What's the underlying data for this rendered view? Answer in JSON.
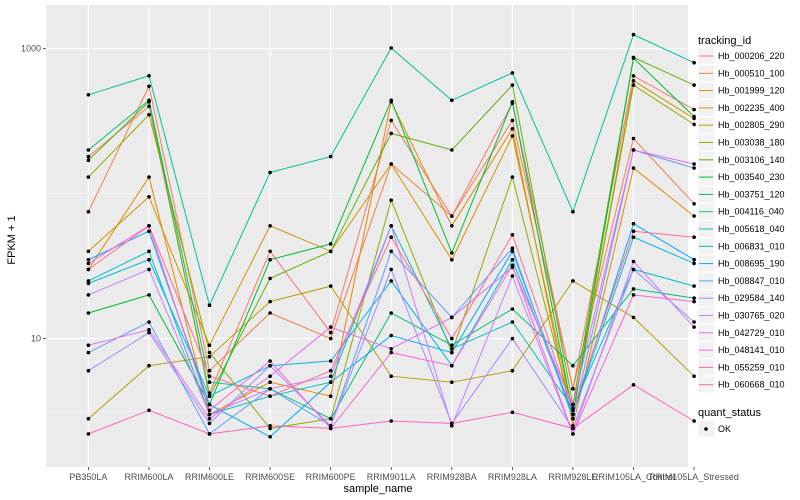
{
  "chart_data": {
    "type": "line",
    "xlabel": "sample_name",
    "ylabel": "FPKM + 1",
    "y_scale": "log10",
    "ylim": [
      1.3,
      2000
    ],
    "y_ticks": [
      {
        "value": 10,
        "label": "10"
      },
      {
        "value": 1000,
        "label": "1000"
      }
    ],
    "grid": true,
    "panel_color": "#ebebeb",
    "categories": [
      "PB350LA",
      "RRIM600LA",
      "RRIM600LE",
      "RRIM600SE",
      "RRIM600PE",
      "RRIM901LA",
      "RRIM928BA",
      "RRIM928LA",
      "RRIM928LE",
      "RRIM105LA_Control",
      "RRIM105LA_Stressed"
    ],
    "legend": {
      "title": "tracking_id",
      "position": "right"
    },
    "legend2": {
      "title": "quant_status",
      "entries": [
        "OK"
      ]
    },
    "series": [
      {
        "name": "Hb_000206_220",
        "color": "#F8766D",
        "values": [
          180,
          400,
          4.2,
          40,
          11,
          320,
          70,
          420,
          4.5,
          650,
          380
        ]
      },
      {
        "name": "Hb_000510_100",
        "color": "#F07E4E",
        "values": [
          75,
          550,
          6,
          15,
          10,
          160,
          70,
          320,
          4.5,
          240,
          85
        ]
      },
      {
        "name": "Hb_001999_120",
        "color": "#E58700",
        "values": [
          30,
          130,
          3,
          5,
          4,
          430,
          60,
          280,
          2.5,
          150,
          70
        ]
      },
      {
        "name": "Hb_002235_400",
        "color": "#D39200",
        "values": [
          40,
          95,
          9,
          60,
          40,
          160,
          35,
          250,
          3,
          600,
          330
        ]
      },
      {
        "name": "Hb_002805_290",
        "color": "#B79F00",
        "values": [
          2.8,
          6.5,
          7.5,
          18,
          23,
          5.5,
          5,
          6,
          25,
          14,
          5.5
        ]
      },
      {
        "name": "Hb_003038_180",
        "color": "#93AA00",
        "values": [
          130,
          350,
          8,
          2.4,
          2.8,
          90,
          8,
          130,
          3,
          560,
          300
        ]
      },
      {
        "name": "Hb_003106_140",
        "color": "#5EB300",
        "values": [
          170,
          430,
          4,
          26,
          40,
          260,
          200,
          560,
          3.5,
          870,
          560
        ]
      },
      {
        "name": "Hb_003540_230",
        "color": "#00BA38",
        "values": [
          15,
          20,
          3.5,
          35,
          45,
          440,
          39,
          430,
          3,
          860,
          340
        ]
      },
      {
        "name": "Hb_003751_120",
        "color": "#00BF74",
        "values": [
          200,
          440,
          5,
          4.5,
          2.8,
          15,
          9,
          16,
          6.5,
          22,
          19
        ]
      },
      {
        "name": "Hb_004116_040",
        "color": "#00C19F",
        "values": [
          480,
          650,
          17,
          140,
          180,
          1010,
          440,
          680,
          75,
          1250,
          800
        ]
      },
      {
        "name": "Hb_005618_040",
        "color": "#00BFC4",
        "values": [
          25,
          40,
          3,
          4,
          5,
          60,
          8.5,
          13,
          3.3,
          30,
          23
        ]
      },
      {
        "name": "Hb_006831_010",
        "color": "#00B8E7",
        "values": [
          24,
          35,
          4,
          6.5,
          7,
          25,
          6.5,
          35,
          3,
          50,
          33
        ]
      },
      {
        "name": "Hb_008695_190",
        "color": "#00A9FF",
        "values": [
          35,
          55,
          3.5,
          2.1,
          5,
          10.5,
          8,
          40,
          3,
          62,
          35
        ]
      },
      {
        "name": "Hb_008847_010",
        "color": "#619CFF",
        "values": [
          8,
          13,
          2.2,
          4.5,
          2.5,
          40,
          14,
          42,
          2.8,
          200,
          150
        ]
      },
      {
        "name": "Hb_029584_140",
        "color": "#9F8CFF",
        "values": [
          6,
          11,
          2.6,
          6.5,
          2.5,
          30,
          2.6,
          10,
          2.4,
          30,
          13
        ]
      },
      {
        "name": "Hb_030765_020",
        "color": "#C77CFF",
        "values": [
          20,
          30,
          3,
          4.5,
          5.5,
          60,
          2.5,
          27,
          2.2,
          34,
          12
        ]
      },
      {
        "name": "Hb_042729_010",
        "color": "#E76BF3",
        "values": [
          9,
          11.5,
          2.8,
          5.5,
          12,
          8.5,
          14,
          31,
          3.5,
          200,
          160
        ]
      },
      {
        "name": "Hb_048141_010",
        "color": "#FA62DB",
        "values": [
          33,
          60,
          3.2,
          7,
          2.4,
          8,
          6.5,
          32,
          2.2,
          20,
          18
        ]
      },
      {
        "name": "Hb_055259_010",
        "color": "#FF62BC",
        "values": [
          2.2,
          3.2,
          2.2,
          2.5,
          2.4,
          2.7,
          2.6,
          3.1,
          2.4,
          4.8,
          2.7
        ]
      },
      {
        "name": "Hb_060668_010",
        "color": "#FF6C91",
        "values": [
          30,
          60,
          5.5,
          4,
          6,
          50,
          10,
          52,
          3.2,
          55,
          50
        ]
      }
    ]
  }
}
